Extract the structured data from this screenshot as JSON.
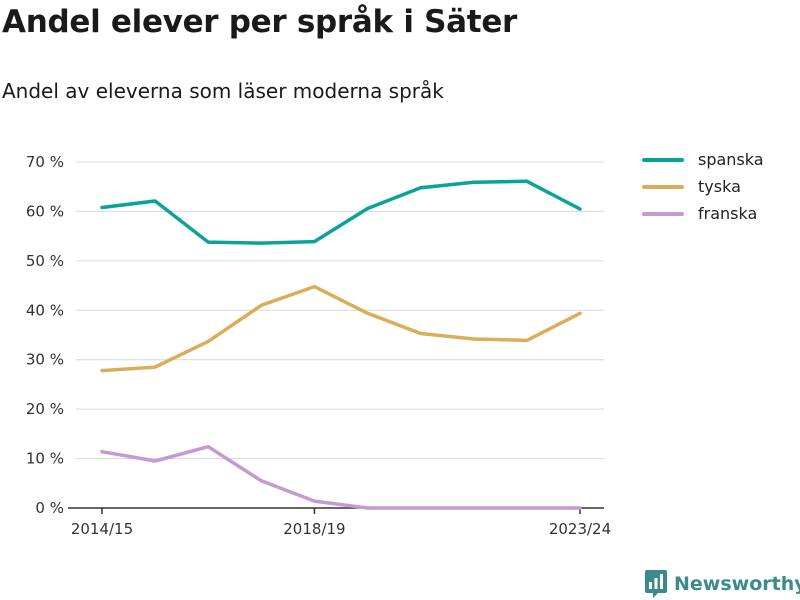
{
  "header": {
    "title": "Andel elever per språk i Säter",
    "subtitle": "Andel av eleverna som läser moderna språk"
  },
  "brand": {
    "name": "Newsworthy",
    "icon": "newsworthy-logo-icon",
    "color": "#3a8c8a"
  },
  "chart_data": {
    "type": "line",
    "title": "Andel elever per språk i Säter",
    "subtitle": "Andel av eleverna som läser moderna språk",
    "xlabel": "",
    "ylabel": "",
    "x": [
      "2014/15",
      "2015/16",
      "2016/17",
      "2017/18",
      "2018/19",
      "2019/20",
      "2020/21",
      "2021/22",
      "2022/23",
      "2023/24"
    ],
    "x_tick_labels": [
      "2014/15",
      "",
      "",
      "",
      "2018/19",
      "",
      "",
      "",
      "",
      "2023/24"
    ],
    "ylim": [
      0,
      70
    ],
    "yticks": [
      0,
      10,
      20,
      30,
      40,
      50,
      60,
      70
    ],
    "ytick_labels": [
      "0 %",
      "10 %",
      "20 %",
      "30 %",
      "40 %",
      "50 %",
      "60 %",
      "70 %"
    ],
    "grid": true,
    "legend": "right",
    "series": [
      {
        "name": "spanska",
        "color": "#0aa39a",
        "values": [
          60.8,
          62.1,
          53.8,
          53.6,
          53.9,
          60.6,
          64.8,
          65.9,
          66.1,
          60.5
        ]
      },
      {
        "name": "tyska",
        "color": "#d9ae5b",
        "values": [
          27.8,
          28.5,
          33.7,
          41.0,
          44.8,
          39.4,
          35.3,
          34.2,
          33.9,
          39.4
        ]
      },
      {
        "name": "franska",
        "color": "#c49bd0",
        "values": [
          11.4,
          9.5,
          12.4,
          5.5,
          1.4,
          0,
          0,
          0,
          0,
          0
        ]
      }
    ]
  }
}
